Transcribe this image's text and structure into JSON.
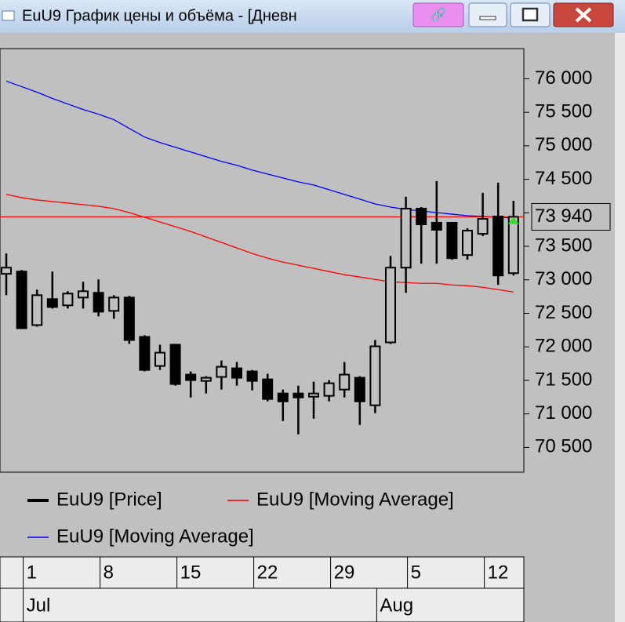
{
  "window": {
    "title": "EuU9 График цены и объёма - [Дневн"
  },
  "chart_data": {
    "type": "candlestick",
    "categories": [
      null,
      "1",
      null,
      null,
      null,
      null,
      "8",
      null,
      null,
      null,
      null,
      "15",
      null,
      null,
      null,
      null,
      "22",
      null,
      null,
      null,
      null,
      "29",
      null,
      null,
      null,
      null,
      "5",
      null,
      null,
      null,
      null,
      "12",
      null,
      null
    ],
    "month_categories": [
      null,
      "Jul",
      null,
      null,
      null,
      null,
      null,
      null,
      null,
      null,
      null,
      null,
      null,
      null,
      null,
      null,
      null,
      null,
      null,
      null,
      null,
      null,
      null,
      null,
      "Aug",
      null,
      null,
      null,
      null,
      null,
      null,
      null,
      null,
      null
    ],
    "ylim": [
      70130,
      76450
    ],
    "yticks": [
      {
        "value": 70500,
        "label": "70 500"
      },
      {
        "value": 71000,
        "label": "71 000"
      },
      {
        "value": 71500,
        "label": "71 500"
      },
      {
        "value": 72000,
        "label": "72 000"
      },
      {
        "value": 72500,
        "label": "72 500"
      },
      {
        "value": 73000,
        "label": "73 000"
      },
      {
        "value": 73500,
        "label": "73 500"
      },
      {
        "value": 74000,
        "label": "74 000"
      },
      {
        "value": 74500,
        "label": "74 500"
      },
      {
        "value": 75000,
        "label": "75 000"
      },
      {
        "value": 75500,
        "label": "75 500"
      },
      {
        "value": 76000,
        "label": "76 000"
      }
    ],
    "last_price": {
      "value": 73940,
      "label": "73 940"
    },
    "series": [
      {
        "name": "EuU9 [Price]",
        "color": "#000000",
        "open": [
          73090,
          73124,
          72325,
          72713,
          72619,
          72736,
          72807,
          72537,
          72736,
          72149,
          71715,
          72032,
          71586,
          71492,
          71551,
          71680,
          71633,
          71515,
          71304,
          71304,
          71257,
          71269,
          71363,
          71539,
          71128,
          72067,
          73182,
          74063,
          73852,
          73852,
          73370,
          73687,
          73945,
          73100
        ],
        "high": [
          73394,
          73147,
          72853,
          73124,
          72830,
          72971,
          73006,
          72771,
          72760,
          72173,
          72032,
          72044,
          71633,
          71562,
          71797,
          71774,
          71656,
          71598,
          71363,
          71421,
          71480,
          71504,
          71774,
          71562,
          72102,
          73358,
          74239,
          74086,
          74474,
          73863,
          73769,
          74298,
          74450,
          74180
        ],
        "low": [
          72771,
          72267,
          72302,
          72572,
          72572,
          72572,
          72455,
          72419,
          72044,
          71633,
          71656,
          71421,
          71245,
          71304,
          71363,
          71421,
          71351,
          71187,
          70893,
          70694,
          70929,
          71187,
          71245,
          70835,
          71010,
          72044,
          72807,
          73241,
          73241,
          73300,
          73300,
          73652,
          72924,
          73065
        ],
        "close": [
          73182,
          72278,
          72771,
          72595,
          72795,
          72830,
          72525,
          72736,
          72102,
          71656,
          71914,
          71445,
          71504,
          71539,
          71703,
          71539,
          71492,
          71222,
          71187,
          71245,
          71304,
          71457,
          71586,
          71187,
          72008,
          73182,
          74063,
          73828,
          73746,
          73323,
          73734,
          73910,
          73065,
          73940
        ]
      },
      {
        "name": "EuU9 [Moving Average]",
        "color": "#ff0000",
        "values": [
          74274,
          74227,
          74192,
          74169,
          74145,
          74122,
          74098,
          74063,
          74004,
          73934,
          73863,
          73793,
          73722,
          73640,
          73558,
          73476,
          73394,
          73323,
          73265,
          73218,
          73171,
          73124,
          73077,
          73042,
          73006,
          72971,
          72959,
          72948,
          72948,
          72924,
          72912,
          72889,
          72854,
          72819
        ]
      },
      {
        "name": "EuU9 [Moving Average]",
        "color": "#0000ff",
        "values": [
          75965,
          75883,
          75800,
          75707,
          75624,
          75542,
          75472,
          75390,
          75260,
          75131,
          75049,
          74978,
          74908,
          74838,
          74767,
          74709,
          74638,
          74579,
          74521,
          74462,
          74415,
          74345,
          74274,
          74204,
          74133,
          74086,
          74051,
          74027,
          74004,
          73980,
          73957,
          73945,
          73933,
          73922
        ]
      }
    ]
  }
}
